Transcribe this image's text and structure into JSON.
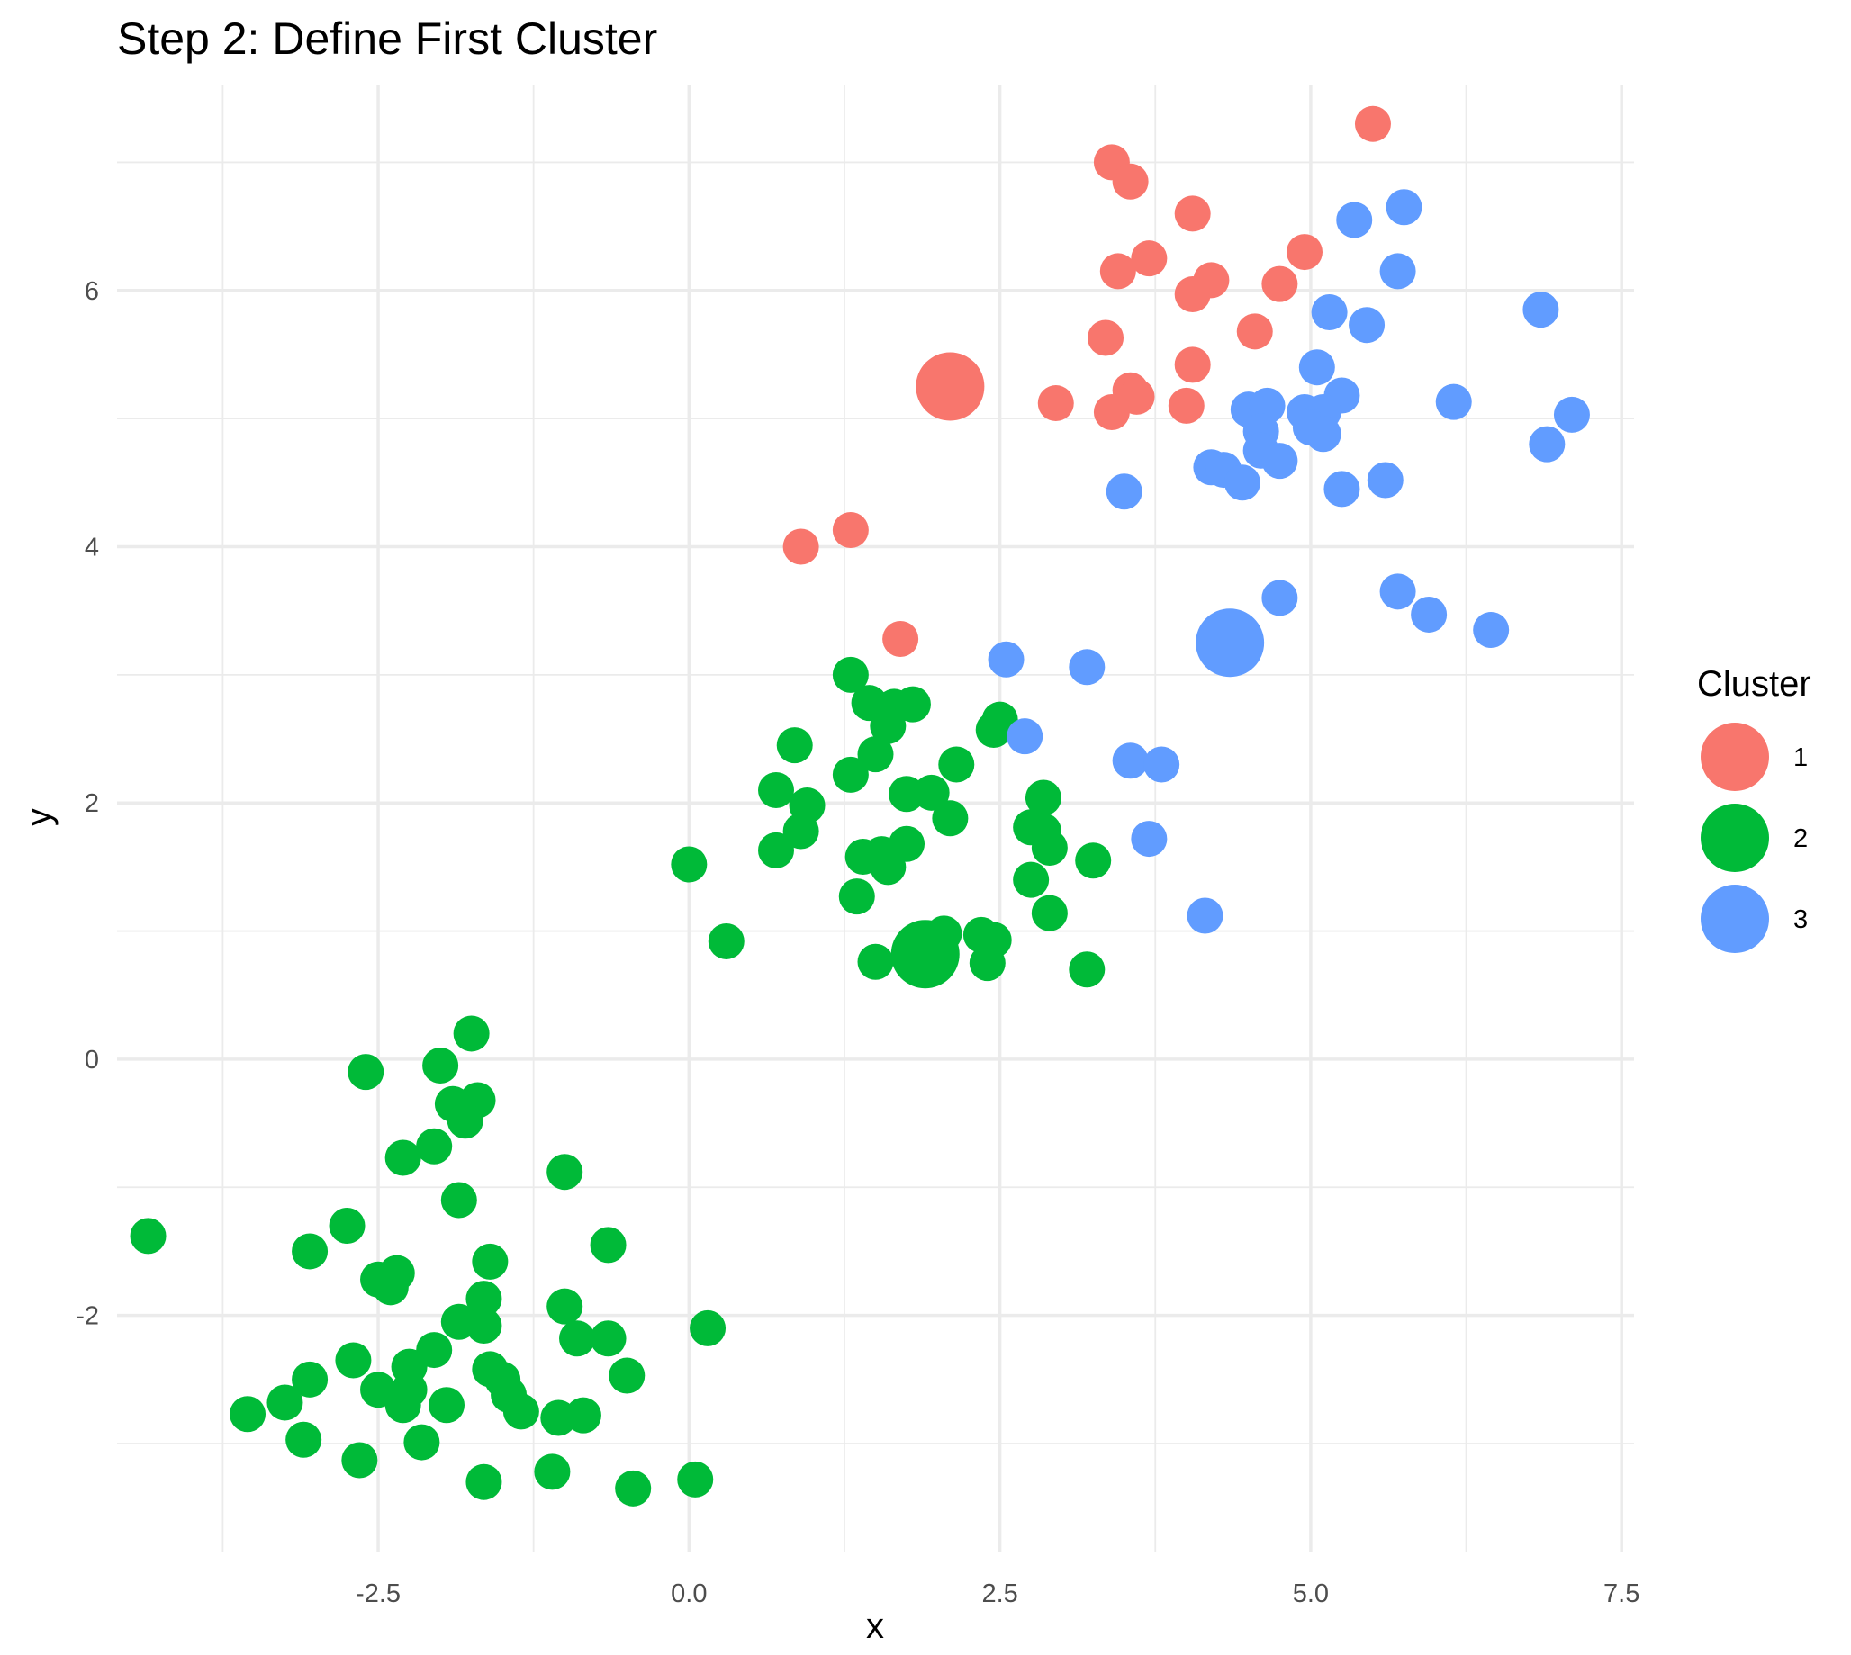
{
  "chart_data": {
    "type": "scatter",
    "title": "Step 2: Define First Cluster",
    "xlabel": "x",
    "ylabel": "y",
    "xlim": [
      -4.6,
      7.6
    ],
    "ylim": [
      -3.85,
      7.6
    ],
    "x_ticks": [
      -2.5,
      0.0,
      2.5,
      5.0,
      7.5
    ],
    "x_tick_labels": [
      "-2.5",
      "0.0",
      "2.5",
      "5.0",
      "7.5"
    ],
    "y_ticks": [
      -2,
      0,
      2,
      4,
      6
    ],
    "y_tick_labels": [
      "-2",
      "0",
      "2",
      "4",
      "6"
    ],
    "grid": true,
    "legend": {
      "title": "Cluster",
      "position": "right",
      "entries": [
        {
          "label": "1",
          "color": "#F8766D"
        },
        {
          "label": "2",
          "color": "#00BA38"
        },
        {
          "label": "3",
          "color": "#619CFF"
        }
      ]
    },
    "series": [
      {
        "name": "1",
        "color": "#F8766D",
        "centroid": [
          2.1,
          5.25
        ],
        "points": [
          [
            5.5,
            7.3
          ],
          [
            3.4,
            7.0
          ],
          [
            3.55,
            6.85
          ],
          [
            4.05,
            6.6
          ],
          [
            4.95,
            6.3
          ],
          [
            3.7,
            6.25
          ],
          [
            3.45,
            6.15
          ],
          [
            4.2,
            6.08
          ],
          [
            4.75,
            6.05
          ],
          [
            4.05,
            5.97
          ],
          [
            4.55,
            5.68
          ],
          [
            3.35,
            5.63
          ],
          [
            4.05,
            5.42
          ],
          [
            3.55,
            5.22
          ],
          [
            3.6,
            5.17
          ],
          [
            2.95,
            5.12
          ],
          [
            4.0,
            5.1
          ],
          [
            3.4,
            5.05
          ],
          [
            0.9,
            4.0
          ],
          [
            1.3,
            4.13
          ],
          [
            1.7,
            3.28
          ]
        ]
      },
      {
        "name": "2",
        "color": "#00BA38",
        "centroid": [
          1.9,
          0.82
        ],
        "points": [
          [
            1.3,
            3.0
          ],
          [
            1.45,
            2.78
          ],
          [
            1.65,
            2.75
          ],
          [
            1.8,
            2.77
          ],
          [
            1.6,
            2.6
          ],
          [
            2.5,
            2.65
          ],
          [
            2.45,
            2.57
          ],
          [
            0.85,
            2.45
          ],
          [
            1.5,
            2.38
          ],
          [
            2.15,
            2.3
          ],
          [
            1.3,
            2.22
          ],
          [
            0.7,
            2.1
          ],
          [
            1.75,
            2.07
          ],
          [
            1.95,
            2.08
          ],
          [
            0.95,
            1.98
          ],
          [
            2.85,
            2.04
          ],
          [
            2.1,
            1.88
          ],
          [
            0.9,
            1.78
          ],
          [
            2.75,
            1.81
          ],
          [
            2.85,
            1.78
          ],
          [
            0.7,
            1.63
          ],
          [
            1.4,
            1.58
          ],
          [
            1.55,
            1.6
          ],
          [
            1.75,
            1.68
          ],
          [
            2.9,
            1.65
          ],
          [
            0.0,
            1.52
          ],
          [
            1.6,
            1.5
          ],
          [
            3.25,
            1.55
          ],
          [
            2.75,
            1.4
          ],
          [
            1.35,
            1.27
          ],
          [
            2.9,
            1.14
          ],
          [
            0.3,
            0.92
          ],
          [
            2.05,
            0.98
          ],
          [
            2.35,
            0.97
          ],
          [
            2.45,
            0.93
          ],
          [
            1.5,
            0.76
          ],
          [
            2.4,
            0.75
          ],
          [
            3.2,
            0.7
          ],
          [
            -1.75,
            0.2
          ],
          [
            -2.6,
            -0.1
          ],
          [
            -2.0,
            -0.05
          ],
          [
            -1.9,
            -0.35
          ],
          [
            -1.7,
            -0.32
          ],
          [
            -1.8,
            -0.48
          ],
          [
            -2.05,
            -0.68
          ],
          [
            -2.3,
            -0.77
          ],
          [
            -1.0,
            -0.88
          ],
          [
            -1.85,
            -1.1
          ],
          [
            -2.75,
            -1.3
          ],
          [
            -4.35,
            -1.38
          ],
          [
            -0.65,
            -1.45
          ],
          [
            -3.05,
            -1.5
          ],
          [
            -1.6,
            -1.58
          ],
          [
            -2.5,
            -1.72
          ],
          [
            -2.35,
            -1.67
          ],
          [
            -2.4,
            -1.78
          ],
          [
            -1.65,
            -1.87
          ],
          [
            -1.0,
            -1.93
          ],
          [
            -1.85,
            -2.05
          ],
          [
            -1.65,
            -2.08
          ],
          [
            0.15,
            -2.1
          ],
          [
            -0.9,
            -2.18
          ],
          [
            -0.65,
            -2.18
          ],
          [
            -2.05,
            -2.27
          ],
          [
            -2.7,
            -2.35
          ],
          [
            -2.25,
            -2.4
          ],
          [
            -1.6,
            -2.42
          ],
          [
            -1.5,
            -2.5
          ],
          [
            -3.05,
            -2.5
          ],
          [
            -2.5,
            -2.58
          ],
          [
            -2.25,
            -2.58
          ],
          [
            -0.5,
            -2.47
          ],
          [
            -1.45,
            -2.62
          ],
          [
            -3.25,
            -2.68
          ],
          [
            -2.3,
            -2.7
          ],
          [
            -1.95,
            -2.7
          ],
          [
            -1.35,
            -2.75
          ],
          [
            -3.55,
            -2.77
          ],
          [
            -1.05,
            -2.8
          ],
          [
            -0.85,
            -2.78
          ],
          [
            -3.1,
            -2.97
          ],
          [
            -2.15,
            -2.99
          ],
          [
            -2.65,
            -3.13
          ],
          [
            -1.1,
            -3.22
          ],
          [
            -1.65,
            -3.3
          ],
          [
            0.05,
            -3.28
          ],
          [
            -0.45,
            -3.35
          ]
        ]
      },
      {
        "name": "3",
        "color": "#619CFF",
        "centroid": [
          4.35,
          3.25
        ],
        "points": [
          [
            5.75,
            6.65
          ],
          [
            5.35,
            6.55
          ],
          [
            5.7,
            6.15
          ],
          [
            6.85,
            5.85
          ],
          [
            5.15,
            5.83
          ],
          [
            5.45,
            5.73
          ],
          [
            5.05,
            5.4
          ],
          [
            5.25,
            5.18
          ],
          [
            6.15,
            5.13
          ],
          [
            4.5,
            5.07
          ],
          [
            4.65,
            5.1
          ],
          [
            4.95,
            5.05
          ],
          [
            5.1,
            5.05
          ],
          [
            7.1,
            5.03
          ],
          [
            4.6,
            4.9
          ],
          [
            5.0,
            4.93
          ],
          [
            5.1,
            4.88
          ],
          [
            6.9,
            4.8
          ],
          [
            4.6,
            4.75
          ],
          [
            4.75,
            4.67
          ],
          [
            4.2,
            4.62
          ],
          [
            4.3,
            4.6
          ],
          [
            4.45,
            4.5
          ],
          [
            3.5,
            4.43
          ],
          [
            5.25,
            4.45
          ],
          [
            5.6,
            4.52
          ],
          [
            4.75,
            3.6
          ],
          [
            5.7,
            3.65
          ],
          [
            5.95,
            3.47
          ],
          [
            6.45,
            3.35
          ],
          [
            2.55,
            3.12
          ],
          [
            3.2,
            3.06
          ],
          [
            2.7,
            2.52
          ],
          [
            3.55,
            2.33
          ],
          [
            3.8,
            2.3
          ],
          [
            3.7,
            1.72
          ],
          [
            4.15,
            1.12
          ]
        ]
      }
    ]
  }
}
